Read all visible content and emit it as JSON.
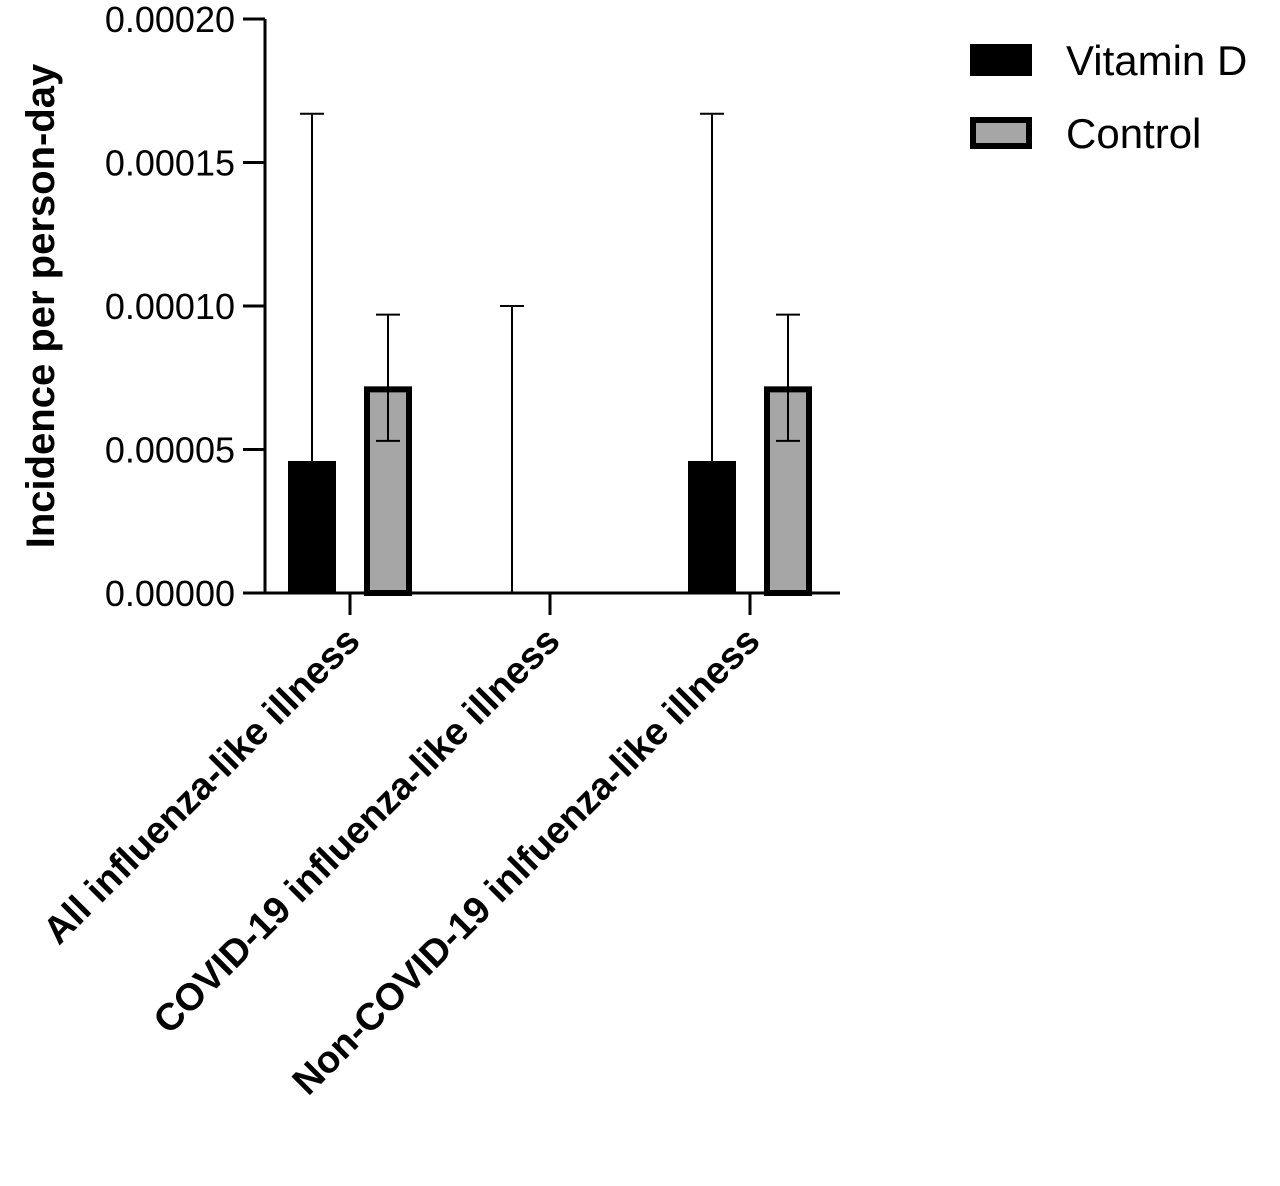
{
  "chart_data": {
    "type": "bar",
    "title": "",
    "xlabel": "",
    "ylabel": "Incidence per person-day",
    "ylim": [
      0,
      0.0002
    ],
    "yticks": [
      "0.00000",
      "0.00005",
      "0.00010",
      "0.00015",
      "0.00020"
    ],
    "grid": false,
    "legend_position": "top-right",
    "categories": [
      "All influenza-like illness",
      "COVID-19 influenza-like illness",
      "Non-COVID-19 inlfuenza-like illness"
    ],
    "series": [
      {
        "name": "Vitamin D",
        "color": "#000000",
        "values": [
          4.6e-05,
          0.0,
          4.6e-05
        ],
        "error_upper": [
          0.000167,
          0.0001,
          0.000167
        ],
        "error_lower": [
          null,
          null,
          null
        ]
      },
      {
        "name": "Control",
        "color": "#a6a6a6",
        "edge_color": "#000000",
        "values": [
          7.2e-05,
          0.0,
          7.2e-05
        ],
        "error_upper": [
          9.7e-05,
          null,
          9.7e-05
        ],
        "error_lower": [
          5.3e-05,
          null,
          5.3e-05
        ]
      }
    ]
  }
}
